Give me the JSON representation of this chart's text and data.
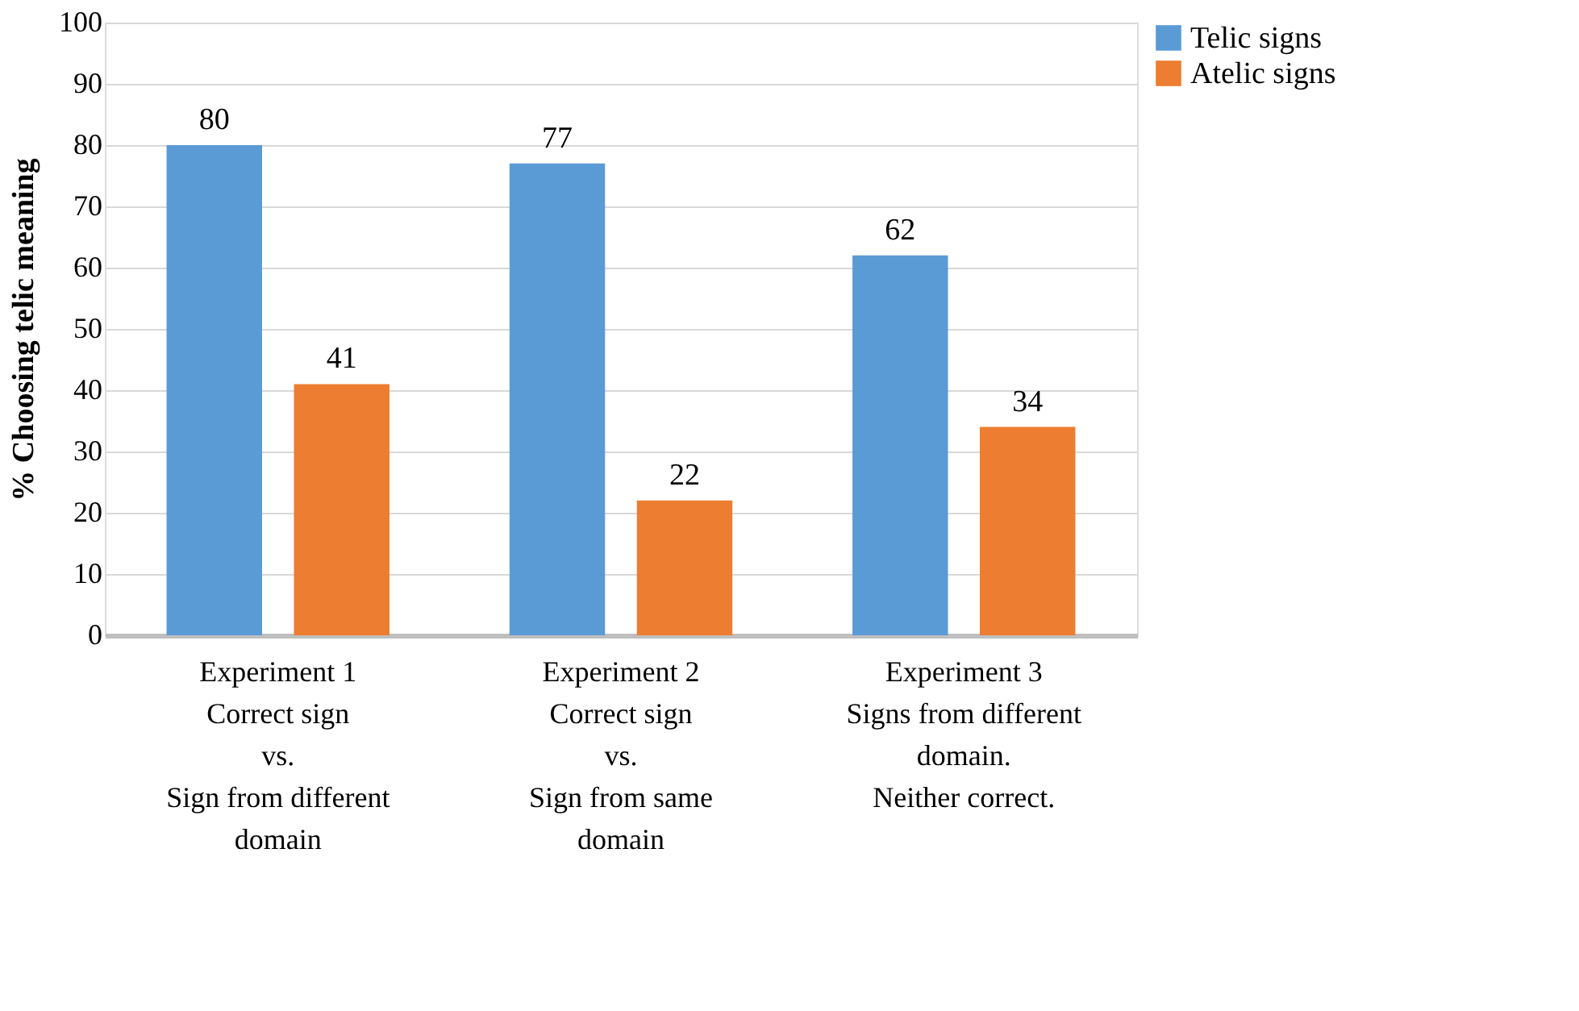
{
  "chart_data": {
    "type": "bar",
    "ylabel": "% Choosing telic meaning",
    "categories": [
      "Experiment 1\nCorrect sign\nvs.\nSign from different\ndomain",
      "Experiment 2\nCorrect sign\nvs.\nSign from same\ndomain",
      "Experiment 3\nSigns from different\ndomain.\nNeither correct."
    ],
    "series": [
      {
        "name": "Telic signs",
        "color": "#5b9bd5",
        "values": [
          80,
          77,
          62
        ]
      },
      {
        "name": "Atelic signs",
        "color": "#ed7d31",
        "values": [
          41,
          22,
          34
        ]
      }
    ],
    "ylim": [
      0,
      100
    ],
    "yticks": [
      0,
      10,
      20,
      30,
      40,
      50,
      60,
      70,
      80,
      90,
      100
    ],
    "grid": "y",
    "legend": "right",
    "data_labels": true
  }
}
